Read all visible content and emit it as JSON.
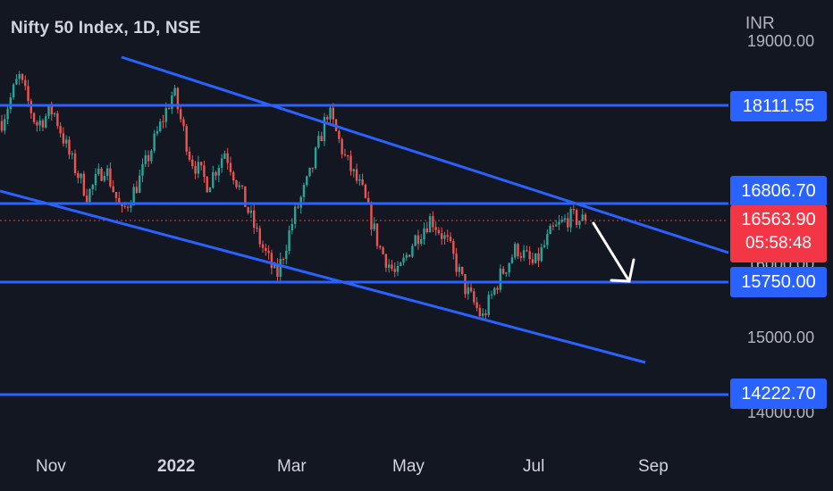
{
  "header": {
    "symbol_title": "Nifty 50 Index, 1D, NSE",
    "currency": "INR"
  },
  "price_axis": {
    "ticks": [
      {
        "label": "19000.00",
        "value": 19000
      },
      {
        "label": "16000.00",
        "value": 16000
      },
      {
        "label": "15000.00",
        "value": 15000
      },
      {
        "label": "14000.00",
        "value": 14000
      }
    ]
  },
  "levels": [
    {
      "label": "18111.55",
      "value": 18111.55
    },
    {
      "label": "16806.70",
      "value": 16806.7
    },
    {
      "label": "15750.00",
      "value": 15750.0
    },
    {
      "label": "14222.70",
      "value": 14222.7
    }
  ],
  "last_price": {
    "label": "16563.90",
    "value": 16563.9,
    "countdown": "05:58:48",
    "color": "#f23645"
  },
  "time_axis": {
    "labels": [
      "Nov",
      "2022",
      "Mar",
      "May",
      "Jul",
      "Sep"
    ]
  },
  "colors": {
    "background": "#131722",
    "up_candle": "#26a69a",
    "down_candle": "#ef5350",
    "drawing_line": "#2962ff",
    "arrow": "#ffffff"
  },
  "chart_data": {
    "type": "candlestick",
    "title": "Nifty 50 Index, 1D, NSE",
    "xlabel": "",
    "ylabel": "INR",
    "ylim": [
      13900,
      19400
    ],
    "horizontal_levels": [
      18111.55,
      16806.7,
      15750.0,
      14222.7
    ],
    "close_path": [
      [
        "Oct",
        17900
      ],
      [
        "Oct",
        18500
      ],
      [
        "Nov",
        17850
      ],
      [
        "Nov",
        18050
      ],
      [
        "Nov",
        17400
      ],
      [
        "Dec",
        16900
      ],
      [
        "Dec",
        17300
      ],
      [
        "Dec",
        16650
      ],
      [
        "Dec",
        17100
      ],
      [
        "2022",
        17700
      ],
      [
        "Jan",
        18300
      ],
      [
        "Jan",
        17400
      ],
      [
        "Feb",
        17050
      ],
      [
        "Feb",
        17500
      ],
      [
        "Feb",
        16900
      ],
      [
        "Mar",
        16300
      ],
      [
        "Mar",
        15800
      ],
      [
        "Mar",
        16600
      ],
      [
        "Mar",
        17200
      ],
      [
        "Apr",
        18050
      ],
      [
        "Apr",
        17400
      ],
      [
        "Apr",
        16950
      ],
      [
        "May",
        16200
      ],
      [
        "May",
        15800
      ],
      [
        "May",
        16300
      ],
      [
        "May",
        16600
      ],
      [
        "Jun",
        16250
      ],
      [
        "Jun",
        15650
      ],
      [
        "Jun",
        15250
      ],
      [
        "Jul",
        15800
      ],
      [
        "Jul",
        16200
      ],
      [
        "Jul",
        15950
      ],
      [
        "Jul",
        16400
      ],
      [
        "Jul",
        16600
      ],
      [
        "Jul",
        16563.9
      ]
    ]
  }
}
